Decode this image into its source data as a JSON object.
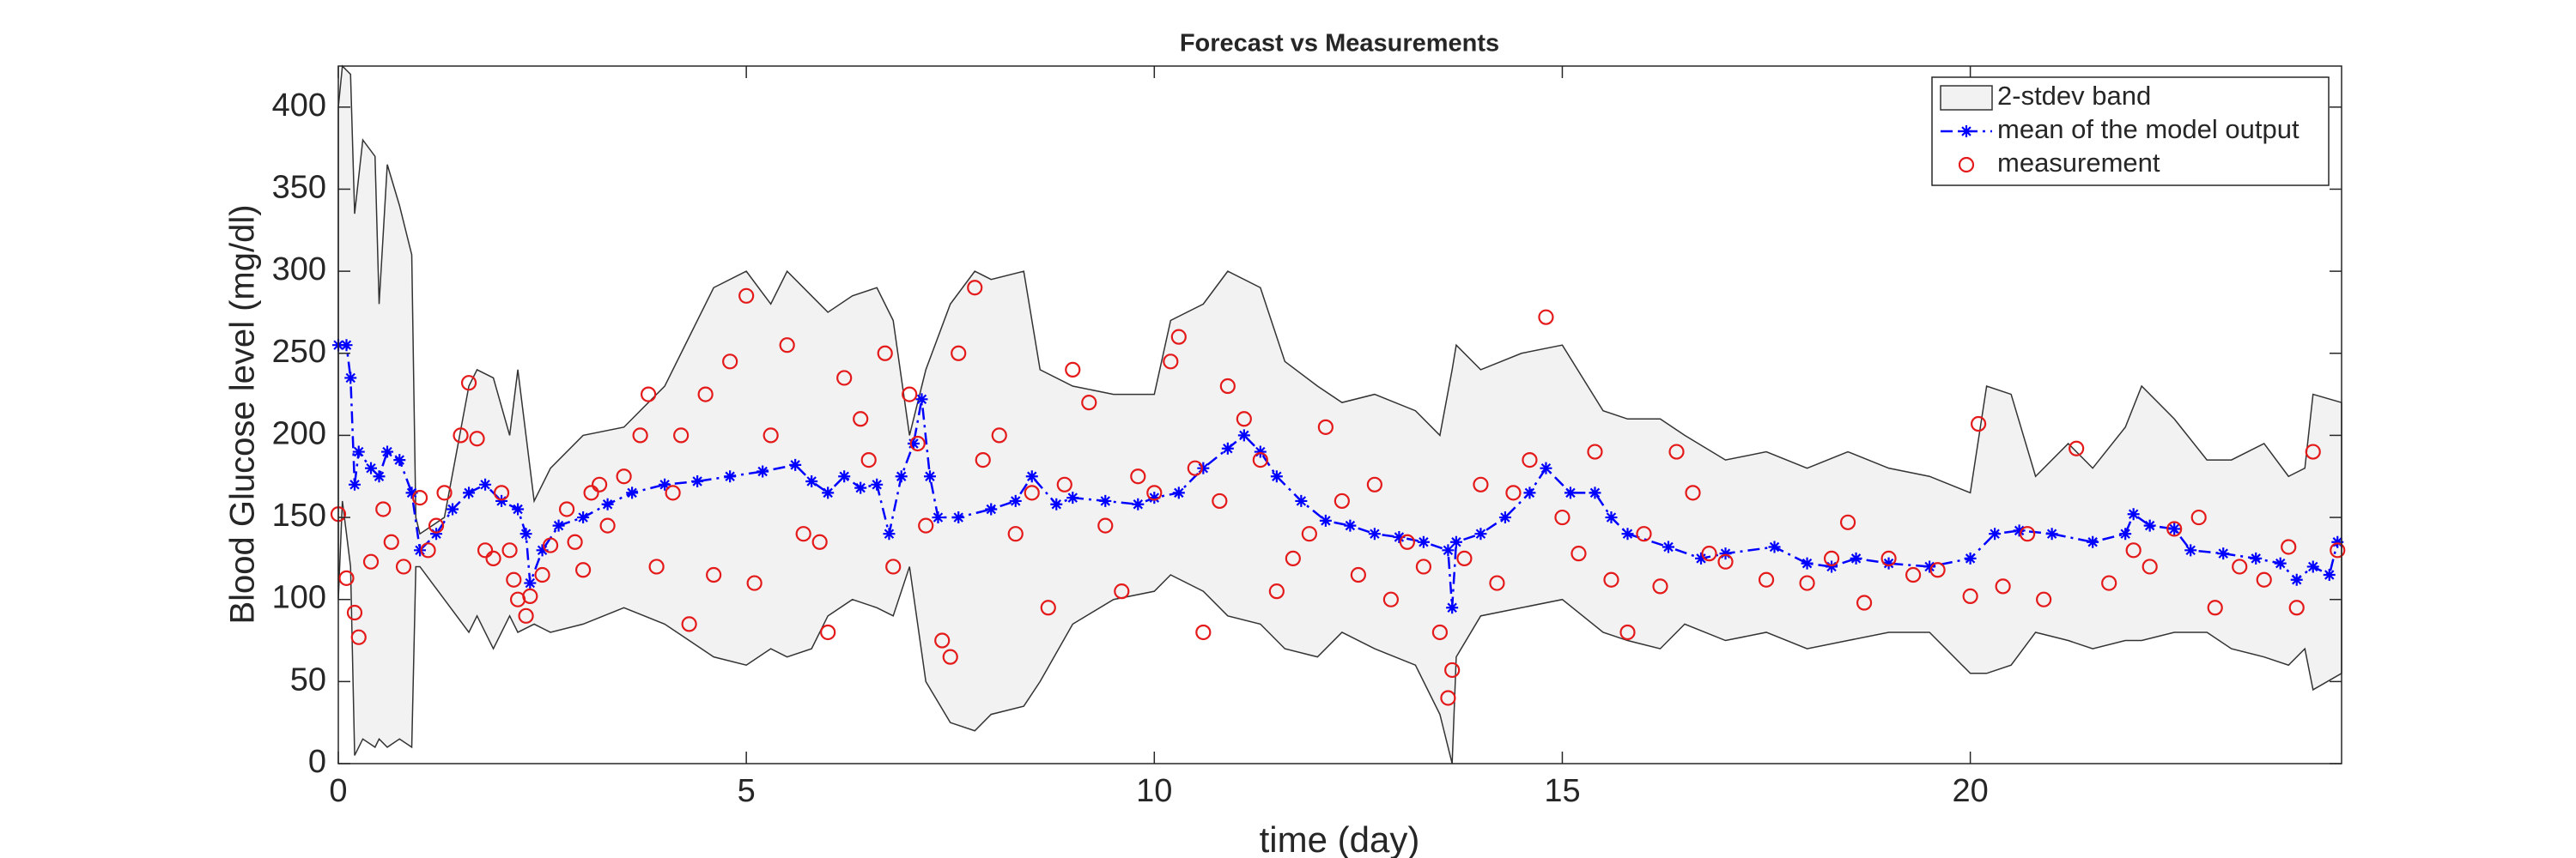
{
  "chart_data": {
    "type": "line",
    "title": "Forecast vs Measurements",
    "xlabel": "time (day)",
    "ylabel": "Blood Glucose level (mg/dl)",
    "xlim": [
      0,
      24.55
    ],
    "ylim": [
      0,
      425
    ],
    "xticks": [
      0,
      5,
      10,
      15,
      20
    ],
    "yticks": [
      0,
      50,
      100,
      150,
      200,
      250,
      300,
      350,
      400
    ],
    "legend": "northeast",
    "series": [
      {
        "name": "2-stdev band",
        "kind": "band",
        "color": "#f2f2f2",
        "x": [
          0,
          0.05,
          0.15,
          0.2,
          0.3,
          0.45,
          0.5,
          0.6,
          0.75,
          0.9,
          0.95,
          1.0,
          1.3,
          1.6,
          1.7,
          1.9,
          2.1,
          2.2,
          2.4,
          2.6,
          3.0,
          3.5,
          4.0,
          4.3,
          4.6,
          5.0,
          5.3,
          5.5,
          5.8,
          6.0,
          6.3,
          6.6,
          6.8,
          7.0,
          7.2,
          7.5,
          7.8,
          8.0,
          8.4,
          8.6,
          9.0,
          9.5,
          10.0,
          10.2,
          10.6,
          10.9,
          11.3,
          11.6,
          12.0,
          12.3,
          12.7,
          13.2,
          13.5,
          13.65,
          13.7,
          14.0,
          14.5,
          15.0,
          15.5,
          15.8,
          16.2,
          16.5,
          17.0,
          17.5,
          18.0,
          18.5,
          19.0,
          19.5,
          20.0,
          20.2,
          20.5,
          20.8,
          21.2,
          21.5,
          21.9,
          22.1,
          22.5,
          22.9,
          23.2,
          23.6,
          23.9,
          24.1,
          24.2,
          24.55
        ],
        "values": [
          400,
          425,
          420,
          335,
          380,
          370,
          280,
          365,
          340,
          310,
          150,
          140,
          150,
          230,
          240,
          235,
          200,
          240,
          160,
          180,
          200,
          205,
          230,
          260,
          290,
          300,
          280,
          300,
          285,
          275,
          285,
          290,
          270,
          200,
          240,
          280,
          300,
          295,
          300,
          240,
          230,
          225,
          225,
          270,
          280,
          300,
          290,
          245,
          230,
          220,
          225,
          215,
          200,
          240,
          255,
          240,
          250,
          255,
          215,
          210,
          210,
          200,
          185,
          190,
          180,
          190,
          180,
          175,
          165,
          230,
          225,
          175,
          195,
          180,
          205,
          230,
          210,
          185,
          185,
          195,
          175,
          180,
          225,
          220
        ],
        "lower": [
          100,
          160,
          120,
          5,
          15,
          10,
          15,
          10,
          15,
          10,
          120,
          120,
          100,
          80,
          90,
          70,
          90,
          80,
          85,
          80,
          85,
          95,
          85,
          75,
          65,
          60,
          70,
          65,
          70,
          90,
          100,
          95,
          90,
          120,
          50,
          25,
          20,
          30,
          35,
          50,
          85,
          100,
          105,
          115,
          105,
          90,
          85,
          70,
          65,
          80,
          70,
          60,
          30,
          0,
          65,
          90,
          95,
          100,
          80,
          75,
          70,
          85,
          75,
          80,
          70,
          75,
          80,
          80,
          55,
          55,
          60,
          80,
          75,
          70,
          75,
          75,
          80,
          80,
          70,
          65,
          60,
          70,
          45,
          55
        ]
      },
      {
        "name": "mean of the model output",
        "kind": "line",
        "color": "#0000ff",
        "x": [
          0,
          0.1,
          0.15,
          0.2,
          0.25,
          0.4,
          0.5,
          0.6,
          0.75,
          0.9,
          1.0,
          1.2,
          1.4,
          1.6,
          1.8,
          2.0,
          2.2,
          2.3,
          2.35,
          2.5,
          2.7,
          3.0,
          3.3,
          3.6,
          4.0,
          4.4,
          4.8,
          5.2,
          5.6,
          5.8,
          6.0,
          6.2,
          6.4,
          6.6,
          6.75,
          6.9,
          7.05,
          7.15,
          7.25,
          7.35,
          7.6,
          8.0,
          8.3,
          8.5,
          8.8,
          9.0,
          9.4,
          9.8,
          10.0,
          10.3,
          10.6,
          10.9,
          11.1,
          11.3,
          11.5,
          11.8,
          12.1,
          12.4,
          12.7,
          13.0,
          13.3,
          13.6,
          13.65,
          13.7,
          14.0,
          14.3,
          14.6,
          14.8,
          15.1,
          15.4,
          15.6,
          15.8,
          16.3,
          16.7,
          17.0,
          17.6,
          18.0,
          18.3,
          18.6,
          19.0,
          19.5,
          20.0,
          20.3,
          20.6,
          21.0,
          21.5,
          21.9,
          22.0,
          22.2,
          22.5,
          22.7,
          23.1,
          23.5,
          23.8,
          24.0,
          24.2,
          24.4,
          24.5
        ],
        "values": [
          255,
          255,
          235,
          170,
          190,
          180,
          175,
          190,
          185,
          165,
          130,
          140,
          155,
          165,
          170,
          160,
          155,
          140,
          110,
          130,
          145,
          150,
          158,
          165,
          170,
          172,
          175,
          178,
          182,
          172,
          165,
          175,
          168,
          170,
          140,
          175,
          195,
          222,
          175,
          150,
          150,
          155,
          160,
          175,
          158,
          162,
          160,
          158,
          162,
          165,
          180,
          192,
          200,
          190,
          175,
          160,
          148,
          145,
          140,
          138,
          135,
          130,
          95,
          135,
          140,
          150,
          165,
          180,
          165,
          165,
          150,
          140,
          132,
          125,
          128,
          132,
          122,
          120,
          125,
          122,
          120,
          125,
          140,
          142,
          140,
          135,
          140,
          152,
          145,
          143,
          130,
          128,
          125,
          122,
          112,
          120,
          115,
          135
        ]
      },
      {
        "name": "measurement",
        "kind": "scatter",
        "color": "#e41a1a",
        "x": [
          0,
          0.1,
          0.2,
          0.25,
          0.4,
          0.55,
          0.65,
          0.8,
          1.0,
          1.1,
          1.2,
          1.3,
          1.5,
          1.6,
          1.7,
          1.8,
          1.9,
          2.0,
          2.1,
          2.15,
          2.2,
          2.3,
          2.35,
          2.5,
          2.6,
          2.8,
          2.9,
          3.0,
          3.1,
          3.2,
          3.3,
          3.5,
          3.7,
          3.8,
          3.9,
          4.1,
          4.2,
          4.3,
          4.5,
          4.6,
          4.8,
          5.0,
          5.1,
          5.3,
          5.5,
          5.7,
          5.9,
          6.0,
          6.2,
          6.4,
          6.5,
          6.7,
          6.8,
          7.0,
          7.1,
          7.2,
          7.4,
          7.5,
          7.6,
          7.8,
          7.9,
          8.1,
          8.3,
          8.5,
          8.7,
          8.9,
          9.0,
          9.2,
          9.4,
          9.6,
          9.8,
          10.0,
          10.2,
          10.3,
          10.5,
          10.6,
          10.8,
          10.9,
          11.1,
          11.3,
          11.5,
          11.7,
          11.9,
          12.1,
          12.3,
          12.5,
          12.7,
          12.9,
          13.1,
          13.3,
          13.5,
          13.6,
          13.65,
          13.8,
          14.0,
          14.2,
          14.4,
          14.6,
          14.8,
          15.0,
          15.2,
          15.4,
          15.6,
          15.8,
          16.0,
          16.2,
          16.4,
          16.6,
          16.8,
          17.0,
          17.5,
          18.0,
          18.3,
          18.5,
          18.7,
          19.0,
          19.3,
          19.6,
          20.0,
          20.1,
          20.4,
          20.7,
          20.9,
          21.3,
          21.7,
          22.0,
          22.2,
          22.5,
          22.8,
          23.0,
          23.3,
          23.6,
          23.9,
          24.0,
          24.2,
          24.5
        ],
        "values": [
          152,
          113,
          92,
          77,
          123,
          155,
          135,
          120,
          162,
          130,
          145,
          165,
          200,
          232,
          198,
          130,
          125,
          165,
          130,
          112,
          100,
          90,
          102,
          115,
          133,
          155,
          135,
          118,
          165,
          170,
          145,
          175,
          200,
          225,
          120,
          165,
          200,
          85,
          225,
          115,
          245,
          285,
          110,
          200,
          255,
          140,
          135,
          80,
          235,
          210,
          185,
          250,
          120,
          225,
          195,
          145,
          75,
          65,
          250,
          290,
          185,
          200,
          140,
          165,
          95,
          170,
          240,
          220,
          145,
          105,
          175,
          165,
          245,
          260,
          180,
          80,
          160,
          230,
          210,
          185,
          105,
          125,
          140,
          205,
          160,
          115,
          170,
          100,
          135,
          120,
          80,
          40,
          57,
          125,
          170,
          110,
          165,
          185,
          272,
          150,
          128,
          190,
          112,
          80,
          140,
          108,
          190,
          165,
          128,
          123,
          112,
          110,
          125,
          147,
          98,
          125,
          115,
          118,
          102,
          207,
          108,
          140,
          100,
          192,
          110,
          130,
          120,
          143,
          150,
          95,
          120,
          112,
          132,
          95,
          190,
          130
        ]
      }
    ]
  }
}
